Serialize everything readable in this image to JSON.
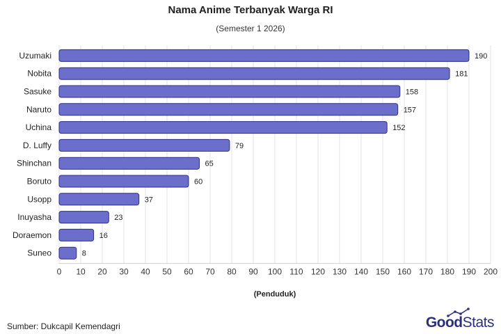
{
  "chart_data": {
    "type": "bar",
    "orientation": "horizontal",
    "title": "Nama Anime Terbanyak Warga RI",
    "subtitle": "(Semester 1 2026)",
    "xlabel": "(Penduduk)",
    "ylabel": "",
    "categories": [
      "Uzumaki",
      "Nobita",
      "Sasuke",
      "Naruto",
      "Uchina",
      "D. Luffy",
      "Shinchan",
      "Boruto",
      "Usopp",
      "Inuyasha",
      "Doraemon",
      "Suneo"
    ],
    "values": [
      190,
      181,
      158,
      157,
      152,
      79,
      65,
      60,
      37,
      23,
      16,
      8
    ],
    "xlim": [
      0,
      200
    ],
    "xticks": [
      0,
      10,
      20,
      30,
      40,
      50,
      60,
      70,
      80,
      90,
      100,
      110,
      120,
      130,
      140,
      150,
      160,
      170,
      180,
      190,
      200
    ],
    "grid": true,
    "bar_color": "#6b6fcb",
    "bar_edge_color": "#2c2f8a"
  },
  "footer": {
    "source": "Sumber: Dukcapil Kemendagri",
    "logo_good": "Good",
    "logo_stats": "Stats"
  }
}
